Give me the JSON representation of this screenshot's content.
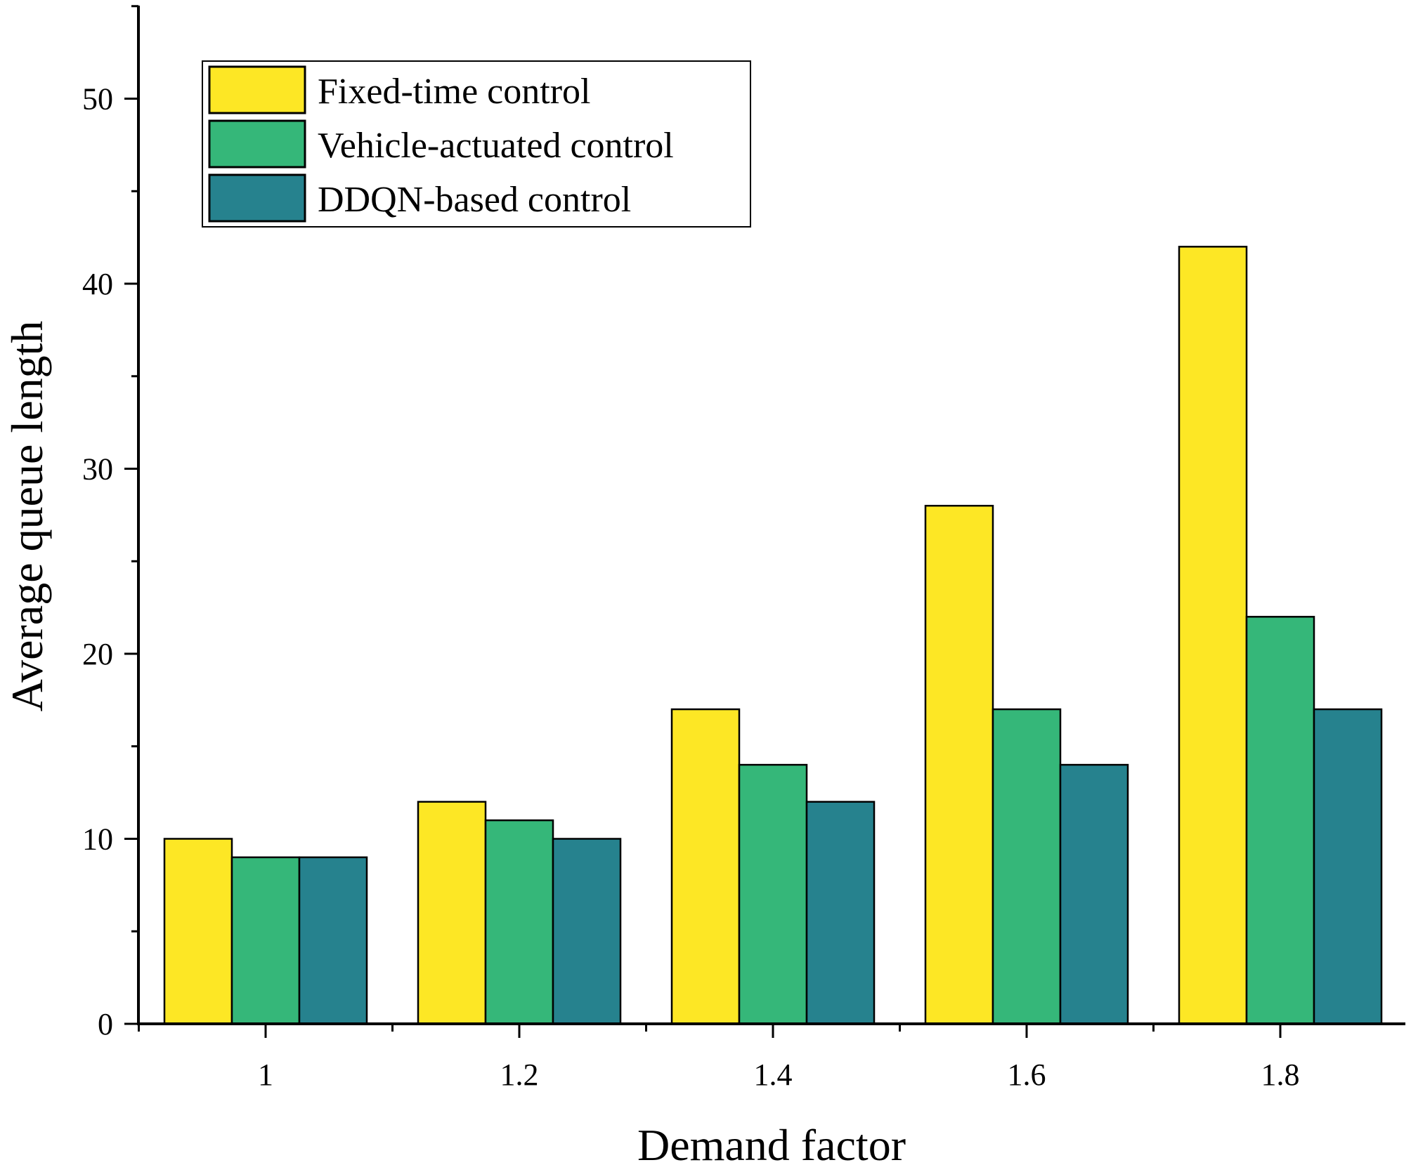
{
  "chart_data": {
    "type": "bar",
    "title": "",
    "xlabel": "Demand factor",
    "ylabel": "Average queue length",
    "categories": [
      "1",
      "1.2",
      "1.4",
      "1.6",
      "1.8"
    ],
    "series": [
      {
        "name": "Fixed-time control",
        "color": "#fde725",
        "values": [
          10,
          12,
          17,
          28,
          42
        ]
      },
      {
        "name": "Vehicle-actuated control",
        "color": "#35b779",
        "values": [
          9,
          11,
          14,
          17,
          22
        ]
      },
      {
        "name": "DDQN-based control",
        "color": "#26828e",
        "values": [
          9,
          10,
          12,
          14,
          17
        ]
      }
    ],
    "ylim": [
      0,
      55
    ],
    "yticks": [
      "0",
      "10",
      "20",
      "30",
      "40",
      "50"
    ],
    "legend": "top-left",
    "grid": false
  }
}
